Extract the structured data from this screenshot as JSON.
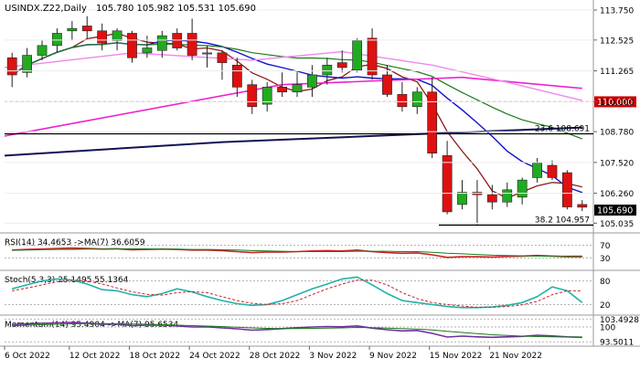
{
  "chart_data": {
    "type": "candlestick",
    "title": "USINDX.Z22,Daily",
    "ohlc_header": "105.780 105.982 105.531 105.690",
    "last_price": "105.690",
    "x_labels": [
      "6 Oct 2022",
      "12 Oct 2022",
      "18 Oct 2022",
      "24 Oct 2022",
      "28 Oct 2022",
      "3 Nov 2022",
      "9 Nov 2022",
      "15 Nov 2022",
      "21 Nov 2022"
    ],
    "price_ticks": [
      "113.750",
      "112.525",
      "111.265",
      "110.000",
      "108.780",
      "107.520",
      "106.260",
      "105.035"
    ],
    "price_range": [
      104.75,
      114.05
    ],
    "candles": [
      [
        111.8,
        112.0,
        110.6,
        111.1
      ],
      [
        111.2,
        112.2,
        111.0,
        111.9
      ],
      [
        111.9,
        112.5,
        111.7,
        112.3
      ],
      [
        112.3,
        113.0,
        112.0,
        112.8
      ],
      [
        112.9,
        113.3,
        112.5,
        113.0
      ],
      [
        113.1,
        113.5,
        112.6,
        112.9
      ],
      [
        112.9,
        113.2,
        112.1,
        112.4
      ],
      [
        112.5,
        113.0,
        112.1,
        112.9
      ],
      [
        112.8,
        112.9,
        111.6,
        111.8
      ],
      [
        112.0,
        112.7,
        111.8,
        112.2
      ],
      [
        112.1,
        112.9,
        111.8,
        112.7
      ],
      [
        112.8,
        113.0,
        112.1,
        112.2
      ],
      [
        112.8,
        113.4,
        111.7,
        111.9
      ],
      [
        112.0,
        112.3,
        111.4,
        112.0
      ],
      [
        112.0,
        112.1,
        110.9,
        111.6
      ],
      [
        111.5,
        111.8,
        110.2,
        110.6
      ],
      [
        110.7,
        110.9,
        109.5,
        109.8
      ],
      [
        109.9,
        110.8,
        109.6,
        110.6
      ],
      [
        110.6,
        111.2,
        110.2,
        110.4
      ],
      [
        110.4,
        111.2,
        110.2,
        110.7
      ],
      [
        110.6,
        111.5,
        110.2,
        111.1
      ],
      [
        111.1,
        111.8,
        110.7,
        111.5
      ],
      [
        111.6,
        112.1,
        111.2,
        111.4
      ],
      [
        111.3,
        112.6,
        111.2,
        112.5
      ],
      [
        112.6,
        113.0,
        110.9,
        111.1
      ],
      [
        111.1,
        111.5,
        110.2,
        110.3
      ],
      [
        110.3,
        110.8,
        109.6,
        109.8
      ],
      [
        109.8,
        110.6,
        109.5,
        110.4
      ],
      [
        110.4,
        111.0,
        107.7,
        107.9
      ],
      [
        107.8,
        108.4,
        105.4,
        105.5
      ],
      [
        105.8,
        106.8,
        105.6,
        106.3
      ],
      [
        106.3,
        106.8,
        105.0,
        106.2
      ],
      [
        106.2,
        106.6,
        105.6,
        105.9
      ],
      [
        105.9,
        106.7,
        105.7,
        106.4
      ],
      [
        106.1,
        106.9,
        105.8,
        106.8
      ],
      [
        106.9,
        107.7,
        106.7,
        107.5
      ],
      [
        107.4,
        107.6,
        106.8,
        106.9
      ],
      [
        107.1,
        107.2,
        105.6,
        105.7
      ],
      [
        105.8,
        105.98,
        105.53,
        105.69
      ]
    ],
    "horizontal_levels": [
      {
        "label": "110.000",
        "value": 110.0,
        "color": "#cc0000",
        "style": "dashed"
      },
      {
        "label": "23.6 108.691",
        "value": 108.691,
        "color": "#000000",
        "style": "solid"
      },
      {
        "label": "38.2 104.957",
        "value": 104.957,
        "color": "#000000",
        "style": "solid"
      }
    ],
    "indicators": [
      {
        "title": "RSI(14) 34.4653 ->MA(7) 36.6059",
        "ticks": [
          "70",
          "30"
        ],
        "range": [
          0,
          100
        ],
        "lines": [
          {
            "name": "RSI(14)",
            "color": "#cc2222",
            "values": [
              55,
              57,
              58,
              60,
              61,
              60,
              58,
              59,
              56,
              57,
              58,
              57,
              55,
              55,
              53,
              50,
              47,
              49,
              49,
              50,
              52,
              53,
              52,
              55,
              50,
              47,
              45,
              46,
              40,
              32,
              34,
              34,
              33,
              35,
              36,
              38,
              36,
              34,
              34
            ]
          },
          {
            "name": "MA(7)",
            "color": "#1a7a1a",
            "values": [
              54,
              55,
              56,
              57,
              57,
              58,
              58,
              59,
              59,
              59,
              58,
              58,
              57,
              57,
              56,
              55,
              53,
              52,
              51,
              50,
              50,
              50,
              50,
              51,
              51,
              51,
              50,
              50,
              48,
              45,
              43,
              41,
              39,
              38,
              37,
              36,
              36,
              36,
              36.6
            ]
          }
        ]
      },
      {
        "title": "Stoch(5,3,3) 25.1495 55.1364",
        "ticks": [
          "80",
          "20"
        ],
        "range": [
          0,
          100
        ],
        "lines": [
          {
            "name": "%K",
            "color": "#20b2aa",
            "values": [
              60,
              70,
              80,
              85,
              82,
              72,
              58,
              55,
              45,
              40,
              48,
              60,
              52,
              40,
              30,
              22,
              18,
              20,
              30,
              45,
              60,
              72,
              85,
              90,
              70,
              48,
              30,
              25,
              20,
              15,
              12,
              12,
              14,
              18,
              25,
              40,
              65,
              55,
              25
            ]
          },
          {
            "name": "%D",
            "color": "#cc2222",
            "values": [
              55,
              62,
              70,
              78,
              82,
              80,
              72,
              62,
              52,
              46,
              44,
              50,
              53,
              50,
              40,
              30,
              23,
              20,
              22,
              30,
              45,
              60,
              72,
              82,
              82,
              70,
              50,
              35,
              25,
              20,
              16,
              13,
              13,
              15,
              19,
              28,
              45,
              55,
              55
            ]
          }
        ]
      },
      {
        "title": "Momentum(14) 95.4904 ->MA(7) 95.6534",
        "ticks": [
          "103.4928",
          "100",
          "93.5011"
        ],
        "range": [
          92.8,
          104.0
        ],
        "lines": [
          {
            "name": "Momentum(14)",
            "color": "#7030a0",
            "values": [
              101.0,
              101.4,
              101.6,
              101.8,
              102.0,
              101.7,
              101.2,
              101.3,
              100.6,
              100.8,
              100.9,
              100.5,
              100.0,
              100.1,
              99.6,
              99.2,
              98.6,
              98.9,
              99.3,
              99.7,
              100.0,
              100.2,
              100.1,
              100.5,
              99.5,
              98.8,
              98.3,
              98.5,
              97.2,
              95.6,
              96.0,
              95.7,
              95.5,
              95.7,
              95.9,
              96.4,
              96.1,
              95.7,
              95.5
            ]
          },
          {
            "name": "MA(7)",
            "color": "#1a7a1a",
            "values": [
              100.5,
              100.8,
              101.0,
              101.2,
              101.4,
              101.5,
              101.5,
              101.4,
              101.3,
              101.2,
              101.0,
              100.8,
              100.6,
              100.4,
              100.2,
              99.9,
              99.6,
              99.4,
              99.3,
              99.3,
              99.4,
              99.5,
              99.6,
              99.8,
              99.7,
              99.5,
              99.3,
              99.1,
              98.7,
              98.1,
              97.6,
              97.1,
              96.6,
              96.3,
              96.0,
              95.8,
              95.7,
              95.6,
              95.65
            ]
          }
        ]
      }
    ],
    "colors": {
      "bull": "#22aa22",
      "bear": "#dd1111",
      "grid": "#cfcfcf",
      "axis": "#666666"
    }
  }
}
